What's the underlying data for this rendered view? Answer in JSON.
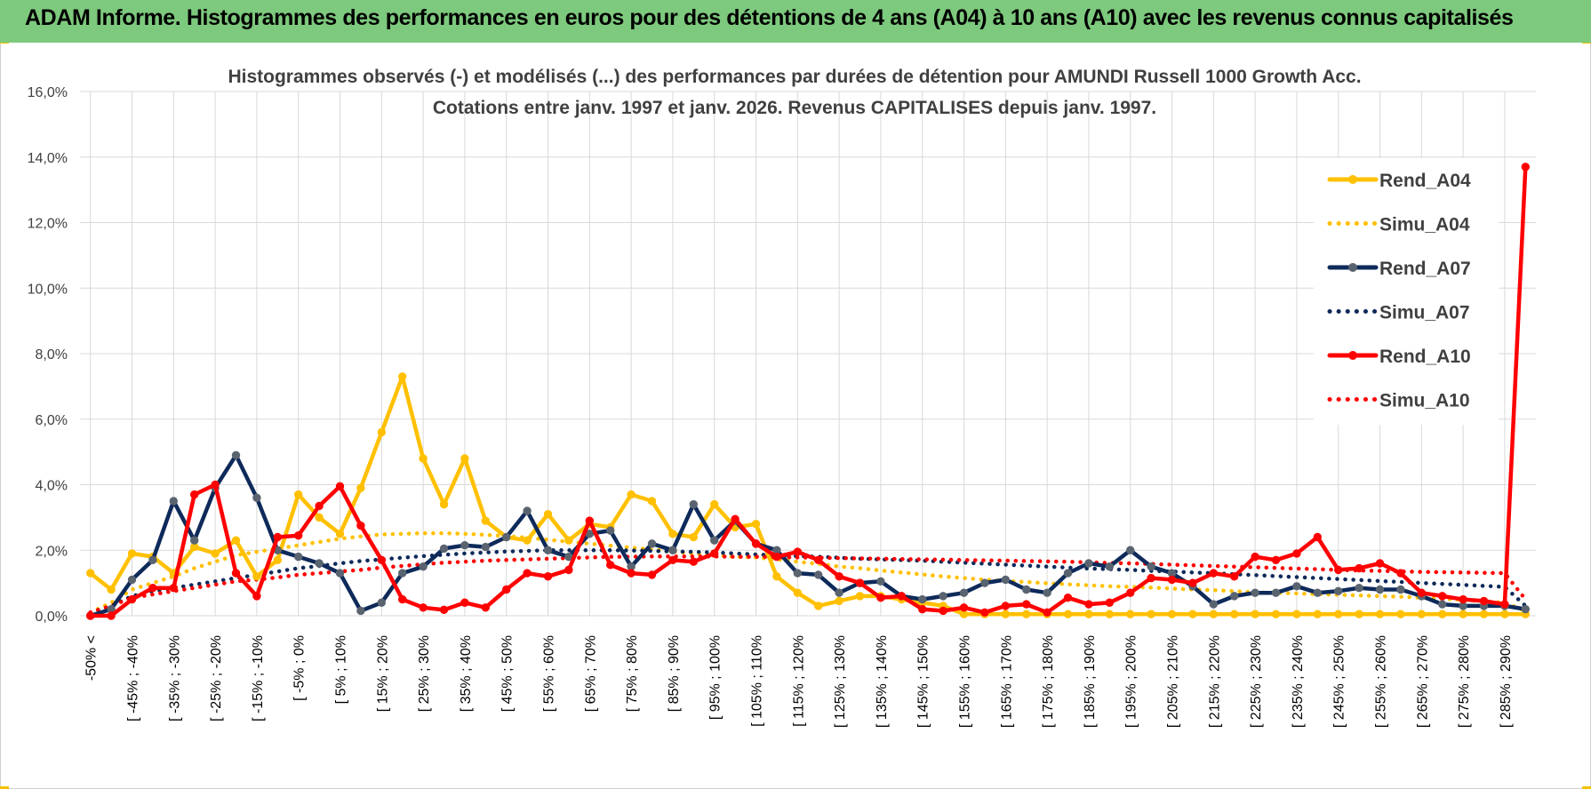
{
  "header": {
    "title": "ADAM Informe. Histogrammes des performances en euros pour des détentions de 4 ans (A04) à 10 ans (A10) avec les revenus connus capitalisés"
  },
  "colors": {
    "header_bg": "#7dc97d",
    "A04": "#ffc000",
    "A07": "#0e2a5a",
    "A07_marker": "#5a6470",
    "A10": "#ff0000",
    "grid": "#d9d9d9"
  },
  "chart_data": {
    "type": "line",
    "title": "Histogrammes observés (-) et modélisés (...) des performances par durées de détention pour AMUNDI Russell 1000 Growth Acc.",
    "subtitle": "Cotations entre janv. 1997 et janv. 2026. Revenus CAPITALISES depuis janv. 1997.",
    "xlabel": "",
    "ylabel": "",
    "ylim": [
      0,
      16
    ],
    "y_ticks": [
      "0,0%",
      "2,0%",
      "4,0%",
      "6,0%",
      "8,0%",
      "10,0%",
      "12,0%",
      "14,0%",
      "16,0%"
    ],
    "grid": true,
    "legend_position": "right",
    "x_labels": [
      "-50% <",
      "[ -45% ; -40%",
      "[ -35% ; -30%",
      "[ -25% ; -20%",
      "[ -15% ; -10%",
      "[ -5% ; 0%",
      "[ 5% ; 10%",
      "[ 15% ; 20%",
      "[ 25% ; 30%",
      "[ 35% ; 40%",
      "[ 45% ; 50%",
      "[ 55% ; 60%",
      "[ 65% ; 70%",
      "[ 75% ; 80%",
      "[ 85% ; 90%",
      "[ 95% ; 100%",
      "[ 105% ; 110%",
      "[ 115% ; 120%",
      "[ 125% ; 130%",
      "[ 135% ; 140%",
      "[ 145% ; 150%",
      "[ 155% ; 160%",
      "[ 165% ; 170%",
      "[ 175% ; 180%",
      "[ 185% ; 190%",
      "[ 195% ; 200%",
      "[ 205% ; 210%",
      "[ 215% ; 220%",
      "[ 225% ; 230%",
      "[ 235% ; 240%",
      "[ 245% ; 250%",
      "[ 255% ; 260%",
      "[ 265% ; 270%",
      "[ 275% ; 280%",
      "[ 285% ; 290%"
    ],
    "series": [
      {
        "name": "Rend_A04",
        "style": "solid",
        "markers": true,
        "values": [
          1.3,
          0.8,
          1.9,
          1.8,
          1.3,
          2.1,
          1.9,
          2.3,
          1.2,
          1.7,
          3.7,
          3.0,
          2.5,
          3.9,
          5.6,
          7.3,
          4.8,
          3.4,
          4.8,
          2.9,
          2.4,
          2.3,
          3.1,
          2.3,
          2.8,
          2.7,
          3.7,
          3.5,
          2.5,
          2.4,
          3.4,
          2.7,
          2.8,
          1.2,
          0.7,
          0.3,
          0.45,
          0.6,
          0.6,
          0.5,
          0.4,
          0.3,
          0.05,
          0.05,
          0.05,
          0.05,
          0.05,
          0.05,
          0.05,
          0.05,
          0.05,
          0.05,
          0.05,
          0.05,
          0.05,
          0.05,
          0.05,
          0.05,
          0.05,
          0.05,
          0.05,
          0.05,
          0.05,
          0.05,
          0.05,
          0.05,
          0.05,
          0.05,
          0.05,
          0.05
        ]
      },
      {
        "name": "Simu_A04",
        "style": "dotted",
        "markers": false,
        "values": [
          0.1,
          0.4,
          0.8,
          1.0,
          1.2,
          1.45,
          1.65,
          1.85,
          1.95,
          2.05,
          2.15,
          2.25,
          2.35,
          2.42,
          2.48,
          2.5,
          2.52,
          2.52,
          2.5,
          2.47,
          2.43,
          2.38,
          2.32,
          2.26,
          2.2,
          2.14,
          2.08,
          2.02,
          1.96,
          1.9,
          1.85,
          1.8,
          1.78,
          1.72,
          1.65,
          1.58,
          1.5,
          1.45,
          1.38,
          1.32,
          1.26,
          1.2,
          1.15,
          1.1,
          1.06,
          1.03,
          0.99,
          0.96,
          0.93,
          0.9,
          0.88,
          0.86,
          0.83,
          0.8,
          0.78,
          0.75,
          0.72,
          0.7,
          0.68,
          0.66,
          0.64,
          0.62,
          0.6,
          0.58,
          0.55,
          0.52,
          0.48,
          0.44,
          0.4,
          0.15
        ]
      },
      {
        "name": "Rend_A07",
        "style": "solid",
        "markers": true,
        "values": [
          0.0,
          0.2,
          1.1,
          1.7,
          3.5,
          2.3,
          3.9,
          4.9,
          3.6,
          2.0,
          1.8,
          1.6,
          1.3,
          0.15,
          0.4,
          1.3,
          1.5,
          2.05,
          2.15,
          2.1,
          2.4,
          3.2,
          2.0,
          1.8,
          2.5,
          2.6,
          1.5,
          2.2,
          2.0,
          3.4,
          2.3,
          2.9,
          2.2,
          2.0,
          1.3,
          1.25,
          0.7,
          1.0,
          1.05,
          0.6,
          0.5,
          0.6,
          0.7,
          1.0,
          1.1,
          0.8,
          0.7,
          1.3,
          1.6,
          1.5,
          2.0,
          1.5,
          1.3,
          0.9,
          0.35,
          0.6,
          0.7,
          0.7,
          0.9,
          0.7,
          0.75,
          0.85,
          0.8,
          0.8,
          0.6,
          0.35,
          0.3,
          0.3,
          0.3,
          0.2
        ]
      },
      {
        "name": "Simu_A07",
        "style": "dotted",
        "markers": false,
        "values": [
          0.1,
          0.3,
          0.6,
          0.75,
          0.85,
          0.95,
          1.05,
          1.15,
          1.25,
          1.35,
          1.45,
          1.52,
          1.6,
          1.67,
          1.72,
          1.77,
          1.82,
          1.86,
          1.9,
          1.93,
          1.96,
          1.98,
          2.0,
          2.0,
          2.0,
          2.0,
          1.99,
          1.98,
          1.96,
          1.95,
          1.93,
          1.9,
          1.87,
          1.84,
          1.82,
          1.8,
          1.77,
          1.74,
          1.72,
          1.7,
          1.68,
          1.65,
          1.62,
          1.59,
          1.56,
          1.53,
          1.5,
          1.47,
          1.44,
          1.42,
          1.4,
          1.37,
          1.35,
          1.32,
          1.3,
          1.27,
          1.24,
          1.21,
          1.18,
          1.15,
          1.12,
          1.09,
          1.06,
          1.03,
          1.0,
          0.97,
          0.94,
          0.91,
          0.88,
          0.3
        ]
      },
      {
        "name": "Rend_A10",
        "style": "solid",
        "markers": true,
        "values": [
          0.0,
          0.0,
          0.5,
          0.85,
          0.85,
          3.7,
          4.0,
          1.3,
          0.6,
          2.4,
          2.45,
          3.35,
          3.95,
          2.75,
          1.7,
          0.5,
          0.25,
          0.18,
          0.4,
          0.25,
          0.8,
          1.3,
          1.2,
          1.4,
          2.9,
          1.55,
          1.3,
          1.25,
          1.7,
          1.65,
          1.9,
          2.95,
          2.2,
          1.8,
          1.95,
          1.7,
          1.2,
          1.0,
          0.55,
          0.6,
          0.2,
          0.15,
          0.25,
          0.1,
          0.3,
          0.35,
          0.1,
          0.55,
          0.35,
          0.4,
          0.7,
          1.15,
          1.1,
          1.0,
          1.3,
          1.2,
          1.8,
          1.7,
          1.9,
          2.4,
          1.4,
          1.45,
          1.6,
          1.3,
          0.7,
          0.6,
          0.5,
          0.45,
          0.35,
          13.7
        ]
      },
      {
        "name": "Simu_A10",
        "style": "dotted",
        "markers": false,
        "values": [
          0.1,
          0.3,
          0.55,
          0.65,
          0.75,
          0.85,
          0.95,
          1.05,
          1.1,
          1.17,
          1.25,
          1.3,
          1.35,
          1.4,
          1.47,
          1.52,
          1.57,
          1.62,
          1.65,
          1.68,
          1.7,
          1.72,
          1.74,
          1.76,
          1.78,
          1.8,
          1.8,
          1.81,
          1.81,
          1.81,
          1.81,
          1.8,
          1.8,
          1.79,
          1.78,
          1.77,
          1.76,
          1.75,
          1.74,
          1.73,
          1.72,
          1.71,
          1.7,
          1.69,
          1.68,
          1.67,
          1.66,
          1.65,
          1.63,
          1.61,
          1.6,
          1.58,
          1.56,
          1.54,
          1.52,
          1.5,
          1.48,
          1.46,
          1.44,
          1.42,
          1.4,
          1.38,
          1.37,
          1.35,
          1.34,
          1.33,
          1.32,
          1.31,
          1.3,
          0.5
        ]
      }
    ]
  }
}
